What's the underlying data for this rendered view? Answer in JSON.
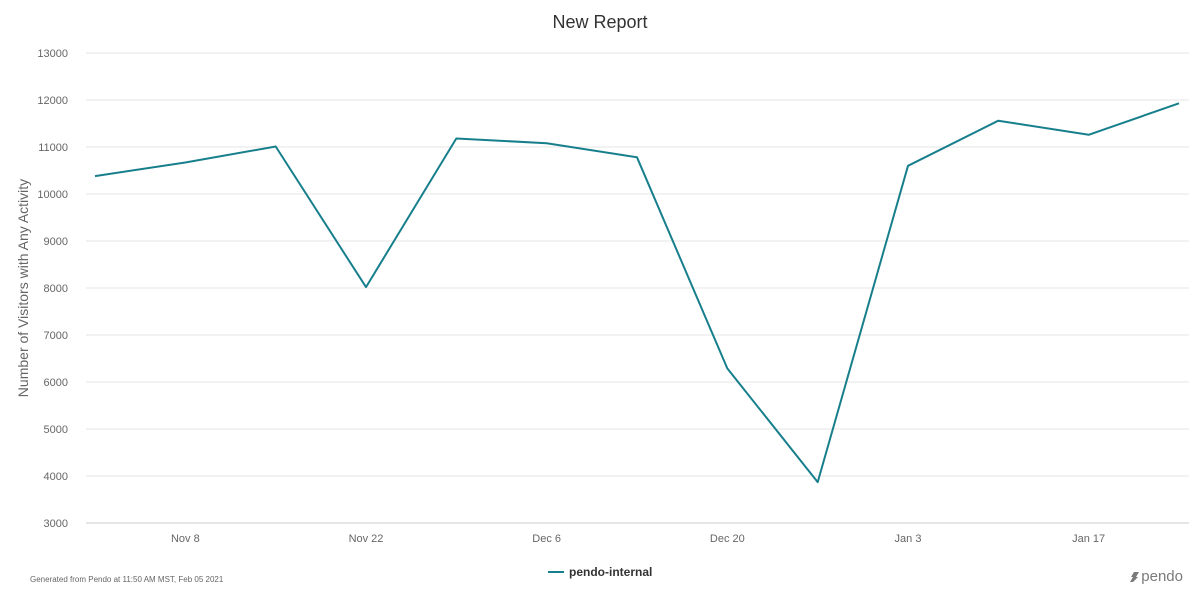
{
  "chart_data": {
    "type": "line",
    "title": "New Report",
    "ylabel": "Number of Visitors with Any Activity",
    "xlabel": "",
    "ylim": [
      3000,
      13000
    ],
    "yticks": [
      3000,
      4000,
      5000,
      6000,
      7000,
      8000,
      9000,
      10000,
      11000,
      12000,
      13000
    ],
    "x": [
      "Nov 1",
      "Nov 8",
      "Nov 15",
      "Nov 22",
      "Nov 29",
      "Dec 6",
      "Dec 13",
      "Dec 20",
      "Dec 27",
      "Jan 3",
      "Jan 10",
      "Jan 17",
      "Jan 24"
    ],
    "xtick_labels": [
      "Nov 8",
      "Nov 22",
      "Dec 6",
      "Dec 20",
      "Jan 3",
      "Jan 17"
    ],
    "grid": true,
    "legend_position": "bottom-center",
    "series": [
      {
        "name": "pendo-internal",
        "color": "#177f8c",
        "values": [
          10380,
          10670,
          11010,
          8020,
          11180,
          11080,
          10780,
          6290,
          3870,
          10600,
          11560,
          11260,
          11930
        ]
      }
    ]
  },
  "footer": {
    "generated_text": "Generated from Pendo at 11:50 AM MST, Feb 05 2021",
    "brand": "pendo"
  },
  "colors": {
    "series_line": "#177f8c",
    "grid": "#e6e6e6",
    "axis_text": "#666666",
    "title_text": "#333333"
  }
}
